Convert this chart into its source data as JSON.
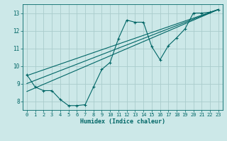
{
  "xlabel": "Humidex (Indice chaleur)",
  "bg_color": "#cce8e8",
  "grid_color": "#aacccc",
  "line_color": "#006666",
  "xlim": [
    -0.5,
    23.5
  ],
  "ylim": [
    7.5,
    13.5
  ],
  "xticks": [
    0,
    1,
    2,
    3,
    4,
    5,
    6,
    7,
    8,
    9,
    10,
    11,
    12,
    13,
    14,
    15,
    16,
    17,
    18,
    19,
    20,
    21,
    22,
    23
  ],
  "yticks": [
    8,
    9,
    10,
    11,
    12,
    13
  ],
  "curve_x": [
    0,
    1,
    2,
    3,
    4,
    5,
    6,
    7,
    8,
    9,
    10,
    11,
    12,
    13,
    14,
    15,
    16,
    17,
    18,
    19,
    20,
    21,
    22,
    23
  ],
  "curve_y": [
    9.5,
    8.8,
    8.6,
    8.6,
    8.1,
    7.75,
    7.75,
    7.8,
    8.8,
    9.8,
    10.2,
    11.55,
    12.6,
    12.48,
    12.48,
    11.1,
    10.35,
    11.15,
    11.6,
    12.1,
    13.0,
    13.0,
    13.05,
    13.2
  ],
  "straight_lines": [
    {
      "x0": 0,
      "y0": 8.55,
      "x1": 23,
      "y1": 13.2
    },
    {
      "x0": 0,
      "y0": 9.0,
      "x1": 23,
      "y1": 13.2
    },
    {
      "x0": 0,
      "y0": 9.45,
      "x1": 23,
      "y1": 13.2
    }
  ]
}
